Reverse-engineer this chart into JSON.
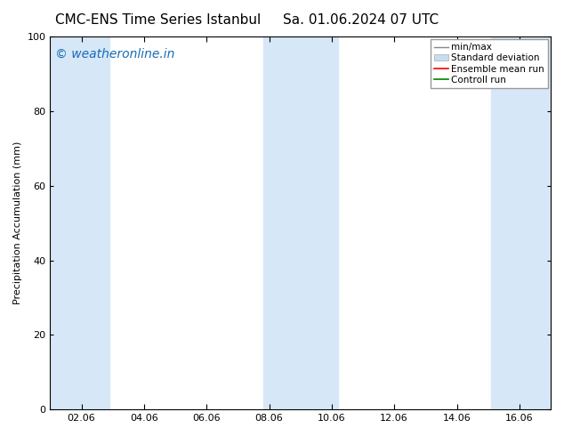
{
  "title_left": "CMC-ENS Time Series Istanbul",
  "title_right": "Sa. 01.06.2024 07 UTC",
  "ylabel": "Precipitation Accumulation (mm)",
  "ylim": [
    0,
    100
  ],
  "xlim_start": 1.0,
  "xlim_end": 17.0,
  "xtick_labels": [
    "02.06",
    "04.06",
    "06.06",
    "08.06",
    "10.06",
    "12.06",
    "14.06",
    "16.06"
  ],
  "xtick_positions": [
    2,
    4,
    6,
    8,
    10,
    12,
    14,
    16
  ],
  "ytick_positions": [
    0,
    20,
    40,
    60,
    80,
    100
  ],
  "background_color": "#ffffff",
  "shaded_bands": [
    {
      "x_start": 1.0,
      "x_end": 2.9,
      "color": "#d6e8f7",
      "alpha": 1.0
    },
    {
      "x_start": 7.8,
      "x_end": 10.2,
      "color": "#d6e8f7",
      "alpha": 1.0
    },
    {
      "x_start": 15.1,
      "x_end": 17.0,
      "color": "#d6e8f7",
      "alpha": 1.0
    }
  ],
  "watermark_text": "© weatheronline.in",
  "watermark_color": "#1a6bb5",
  "watermark_fontsize": 10,
  "legend_entries": [
    {
      "label": "min/max",
      "color": "#aaaaaa",
      "type": "hline"
    },
    {
      "label": "Standard deviation",
      "color": "#c8ddf0",
      "type": "fill"
    },
    {
      "label": "Ensemble mean run",
      "color": "#ff0000",
      "type": "line"
    },
    {
      "label": "Controll run",
      "color": "#008000",
      "type": "line"
    }
  ],
  "title_fontsize": 11,
  "legend_fontsize": 7.5,
  "tick_fontsize": 8,
  "ylabel_fontsize": 8
}
